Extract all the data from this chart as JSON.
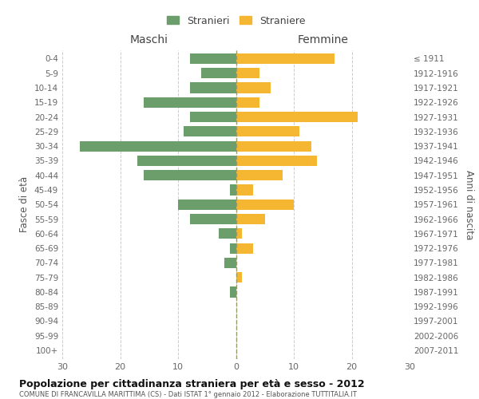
{
  "age_groups": [
    "0-4",
    "5-9",
    "10-14",
    "15-19",
    "20-24",
    "25-29",
    "30-34",
    "35-39",
    "40-44",
    "45-49",
    "50-54",
    "55-59",
    "60-64",
    "65-69",
    "70-74",
    "75-79",
    "80-84",
    "85-89",
    "90-94",
    "95-99",
    "100+"
  ],
  "birth_years": [
    "2007-2011",
    "2002-2006",
    "1997-2001",
    "1992-1996",
    "1987-1991",
    "1982-1986",
    "1977-1981",
    "1972-1976",
    "1967-1971",
    "1962-1966",
    "1957-1961",
    "1952-1956",
    "1947-1951",
    "1942-1946",
    "1937-1941",
    "1932-1936",
    "1927-1931",
    "1922-1926",
    "1917-1921",
    "1912-1916",
    "≤ 1911"
  ],
  "maschi": [
    8,
    6,
    8,
    16,
    8,
    9,
    27,
    17,
    16,
    1,
    10,
    8,
    3,
    1,
    2,
    0,
    1,
    0,
    0,
    0,
    0
  ],
  "femmine": [
    17,
    4,
    6,
    4,
    21,
    11,
    13,
    14,
    8,
    3,
    10,
    5,
    1,
    3,
    0,
    1,
    0,
    0,
    0,
    0,
    0
  ],
  "color_maschi": "#6b9e6b",
  "color_femmine": "#f5b731",
  "title_main": "Popolazione per cittadinanza straniera per età e sesso - 2012",
  "title_sub": "COMUNE DI FRANCAVILLA MARITTIMA (CS) - Dati ISTAT 1° gennaio 2012 - Elaborazione TUTTITALIA.IT",
  "ylabel_left": "Fasce di età",
  "ylabel_right": "Anni di nascita",
  "header_left": "Maschi",
  "header_right": "Femmine",
  "legend_maschi": "Stranieri",
  "legend_femmine": "Straniere",
  "xlim": 30,
  "background_color": "#ffffff",
  "grid_color": "#cccccc"
}
